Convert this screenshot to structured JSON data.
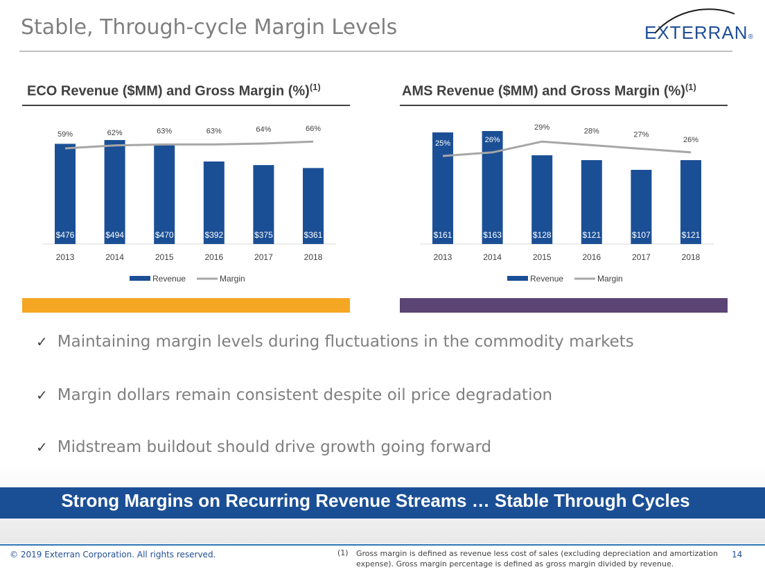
{
  "slide": {
    "title": "Stable, Through-cycle Margin Levels",
    "logo_text": "EXTERRAN",
    "logo_mark": "®",
    "bullets": [
      "Maintaining margin levels during fluctuations in the commodity markets",
      "Margin dollars remain consistent despite oil price degradation",
      "Midstream buildout should drive growth going forward"
    ],
    "banner": "Strong Margins on Recurring Revenue Streams … Stable Through Cycles",
    "copyright": "© 2019 Exterran Corporation. All rights reserved.",
    "footnote_number": "(1)",
    "footnote": "Gross margin is defined as revenue less cost of sales (excluding depreciation and amortization expense). Gross margin percentage is defined as gross margin divided by revenue.",
    "page_number": "14",
    "colors": {
      "revenue": "#1b4f95",
      "margin": "#a6a6a6",
      "eco_band": "#f5a623",
      "ams_band": "#5b4574",
      "banner": "#1b4f95"
    }
  },
  "charts": {
    "eco": {
      "title": "ECO Revenue ($MM) and Gross Margin (%)",
      "sup": "(1)"
    },
    "ams": {
      "title": "AMS Revenue ($MM) and Gross Margin (%)",
      "sup": "(1)"
    }
  },
  "chart_data": [
    {
      "type": "bar",
      "title": "ECO Revenue ($MM) and Gross Margin (%)",
      "categories": [
        "2013",
        "2014",
        "2015",
        "2016",
        "2017",
        "2018"
      ],
      "series": [
        {
          "name": "Revenue",
          "type": "bar",
          "values": [
            476,
            494,
            470,
            392,
            375,
            361
          ],
          "labels": [
            "$476",
            "$494",
            "$470",
            "$392",
            "$375",
            "$361"
          ]
        },
        {
          "name": "Margin",
          "type": "line",
          "values": [
            59,
            62,
            63,
            63,
            64,
            66
          ],
          "labels": [
            "59%",
            "62%",
            "63%",
            "63%",
            "64%",
            "66%"
          ]
        }
      ],
      "legend": "bottom",
      "grid": false
    },
    {
      "type": "bar",
      "title": "AMS Revenue ($MM) and Gross Margin (%)",
      "categories": [
        "2013",
        "2014",
        "2015",
        "2016",
        "2017",
        "2018"
      ],
      "series": [
        {
          "name": "Revenue",
          "type": "bar",
          "values": [
            161,
            163,
            128,
            121,
            107,
            121
          ],
          "labels": [
            "$161",
            "$163",
            "$128",
            "$121",
            "$107",
            "$121"
          ]
        },
        {
          "name": "Margin",
          "type": "line",
          "values": [
            25,
            26,
            29,
            28,
            27,
            26
          ],
          "labels": [
            "25%",
            "26%",
            "29%",
            "28%",
            "27%",
            "26%"
          ]
        }
      ],
      "legend": "bottom",
      "grid": false
    }
  ]
}
